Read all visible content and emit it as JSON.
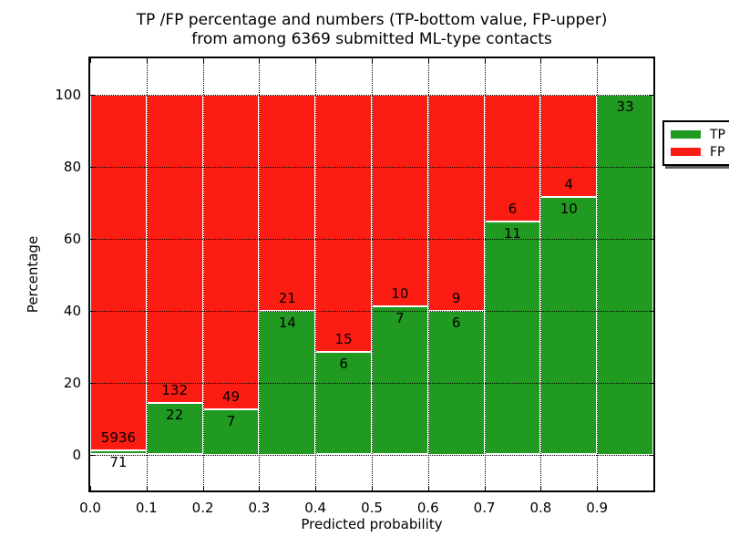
{
  "title": {
    "line1": "TP /FP percentage and numbers (TP-bottom value, FP-upper)",
    "line2": "from among 6369 submitted ML-type contacts"
  },
  "colors": {
    "tp_green": "#219a21",
    "fp_red": "#fb1d14",
    "bar_edge": "#ffffff",
    "grid": "#000000",
    "background": "#ffffff",
    "text": "#000000"
  },
  "chart_data": {
    "type": "bar",
    "stacked": true,
    "title": "TP /FP percentage and numbers (TP-bottom value, FP-upper) from among 6369 submitted ML-type contacts",
    "xlabel": "Predicted probability",
    "ylabel": "Percentage",
    "xlim": [
      0,
      1.0
    ],
    "ylim": [
      -10,
      110
    ],
    "grid": "dotted",
    "total_contacts": 6369,
    "xtick_values": [
      0.0,
      0.1,
      0.2,
      0.3,
      0.4,
      0.5,
      0.6,
      0.7,
      0.8,
      0.9
    ],
    "xtick_labels": [
      "0.0",
      "0.1",
      "0.2",
      "0.3",
      "0.4",
      "0.5",
      "0.6",
      "0.7",
      "0.8",
      "0.9"
    ],
    "ytick_values": [
      0,
      20,
      40,
      60,
      80,
      100
    ],
    "ytick_labels": [
      "0",
      "20",
      "40",
      "60",
      "80",
      "100"
    ],
    "legend": {
      "position": "upper right",
      "entries": [
        {
          "label": "TP",
          "color": "#219a21"
        },
        {
          "label": "FP",
          "color": "#fb1d14"
        }
      ]
    },
    "bins": [
      {
        "x0": 0.0,
        "x1": 0.1,
        "tp_count": 71,
        "fp_count": 5936,
        "tp_pct": 1.18,
        "fp_pct": 98.82
      },
      {
        "x0": 0.1,
        "x1": 0.2,
        "tp_count": 22,
        "fp_count": 132,
        "tp_pct": 14.29,
        "fp_pct": 85.71
      },
      {
        "x0": 0.2,
        "x1": 0.3,
        "tp_count": 7,
        "fp_count": 49,
        "tp_pct": 12.5,
        "fp_pct": 87.5
      },
      {
        "x0": 0.3,
        "x1": 0.4,
        "tp_count": 14,
        "fp_count": 21,
        "tp_pct": 40.0,
        "fp_pct": 60.0
      },
      {
        "x0": 0.4,
        "x1": 0.5,
        "tp_count": 6,
        "fp_count": 15,
        "tp_pct": 28.57,
        "fp_pct": 71.43
      },
      {
        "x0": 0.5,
        "x1": 0.6,
        "tp_count": 7,
        "fp_count": 10,
        "tp_pct": 41.18,
        "fp_pct": 58.82
      },
      {
        "x0": 0.6,
        "x1": 0.7,
        "tp_count": 6,
        "fp_count": 9,
        "tp_pct": 40.0,
        "fp_pct": 60.0
      },
      {
        "x0": 0.7,
        "x1": 0.8,
        "tp_count": 11,
        "fp_count": 6,
        "tp_pct": 64.71,
        "fp_pct": 35.29
      },
      {
        "x0": 0.8,
        "x1": 0.9,
        "tp_count": 10,
        "fp_count": 4,
        "tp_pct": 71.43,
        "fp_pct": 28.57
      },
      {
        "x0": 0.9,
        "x1": 1.0,
        "tp_count": 33,
        "fp_count": 0,
        "tp_pct": 100.0,
        "fp_pct": 0.0
      }
    ]
  }
}
